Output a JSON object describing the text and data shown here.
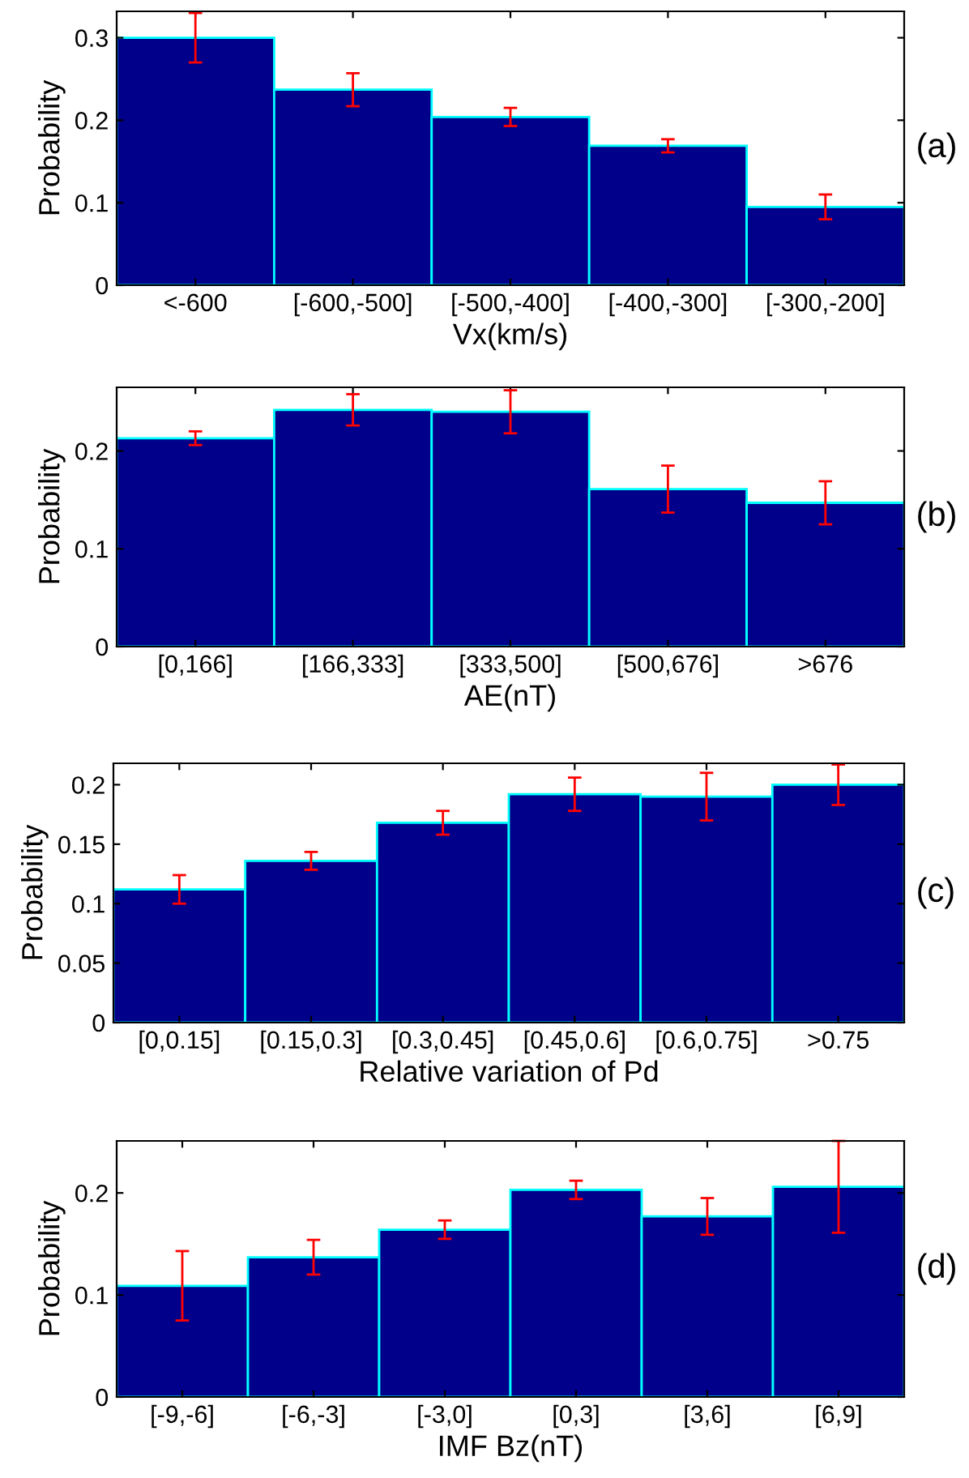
{
  "chart_data": [
    {
      "type": "bar",
      "categories": [
        "<-600",
        "[-600,-500]",
        "[-500,-400]",
        "[-400,-300]",
        "[-300,-200]"
      ],
      "series": [
        {
          "color": "#00008b",
          "values": [
            0.3,
            0.237,
            0.204,
            0.169,
            0.095
          ],
          "errors": [
            0.03,
            0.02,
            0.011,
            0.008,
            0.015
          ]
        }
      ],
      "xlabel": "Vx(km/s)",
      "ylabel": "Probability",
      "ylim": [
        0,
        0.332
      ],
      "yticks": [
        0,
        0.1,
        0.2,
        0.3
      ],
      "annotations": [
        "(a)"
      ],
      "legend": false,
      "grid": false
    },
    {
      "type": "bar",
      "categories": [
        "[0,166]",
        "[166,333]",
        "[333,500]",
        "[500,676]",
        ">676"
      ],
      "series": [
        {
          "color": "#00008b",
          "values": [
            0.213,
            0.242,
            0.24,
            0.161,
            0.147
          ],
          "errors": [
            0.007,
            0.016,
            0.022,
            0.024,
            0.022
          ]
        }
      ],
      "xlabel": "AE(nT)",
      "ylabel": "Probability",
      "ylim": [
        0,
        0.265
      ],
      "yticks": [
        0,
        0.1,
        0.2
      ],
      "annotations": [
        "(b)"
      ],
      "legend": false,
      "grid": false
    },
    {
      "type": "bar",
      "categories": [
        "[0,0.15]",
        "[0.15,0.3]",
        "[0.3,0.45]",
        "[0.45,0.6]",
        "[0.6,0.75]",
        ">0.75"
      ],
      "series": [
        {
          "color": "#00008b",
          "values": [
            0.112,
            0.136,
            0.168,
            0.192,
            0.19,
            0.2
          ],
          "errors": [
            0.012,
            0.0075,
            0.01,
            0.014,
            0.02,
            0.017
          ]
        }
      ],
      "xlabel": "Relative variation of Pd",
      "ylabel": "Probability",
      "ylim": [
        0,
        0.218
      ],
      "yticks": [
        0,
        0.05,
        0.1,
        0.15,
        0.2
      ],
      "annotations": [
        "(c)"
      ],
      "legend": false,
      "grid": false
    },
    {
      "type": "bar",
      "categories": [
        "[-9,-6]",
        "[-6,-3]",
        "[-3,0]",
        "[0,3]",
        "[3,6]",
        "[6,9]"
      ],
      "series": [
        {
          "color": "#00008b",
          "values": [
            0.109,
            0.137,
            0.164,
            0.203,
            0.177,
            0.206
          ],
          "errors": [
            0.034,
            0.017,
            0.009,
            0.009,
            0.018,
            0.045
          ]
        }
      ],
      "xlabel": "IMF Bz(nT)",
      "ylabel": "Probability",
      "ylim": [
        0,
        0.251
      ],
      "yticks": [
        0,
        0.1,
        0.2
      ],
      "annotations": [
        "(d)"
      ],
      "legend": false,
      "grid": false
    }
  ]
}
